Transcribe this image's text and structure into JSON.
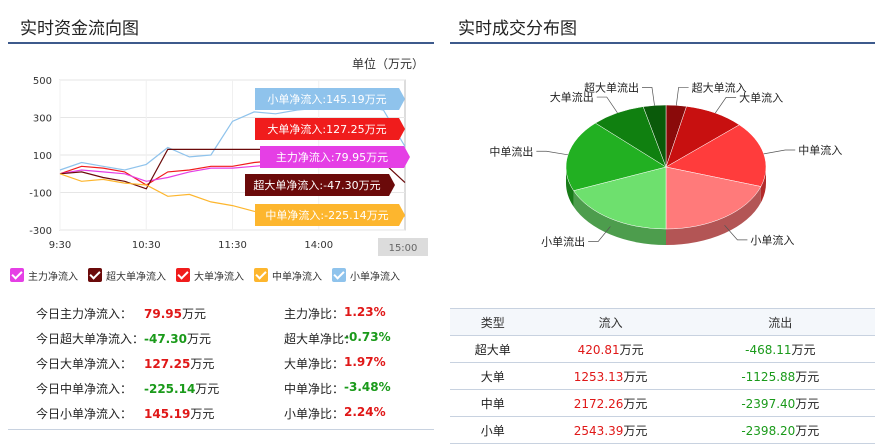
{
  "left_panel": {
    "title": "实时资金流向图",
    "unit": "单位（万元）"
  },
  "right_panel": {
    "title": "实时成交分布图"
  },
  "colors": {
    "accent_rule": "#3d5a8c",
    "main": "#e53fe5",
    "super": "#6b0a0a",
    "large": "#f01c1c",
    "medium": "#fdb62e",
    "small": "#8fc3ec",
    "up": "#e01818",
    "down": "#1a9a1a"
  },
  "chart_data": [
    {
      "type": "line",
      "title": "实时资金流向图",
      "ylabel": "单位（万元）",
      "y_ticks": [
        "500",
        "300",
        "100",
        "-100",
        "-300"
      ],
      "x_ticks": [
        "9:30",
        "10:30",
        "11:30",
        "14:00",
        "15:00"
      ],
      "ylim": [
        -300,
        500
      ],
      "x": [
        "9:30",
        "9:45",
        "10:00",
        "10:15",
        "10:30",
        "10:45",
        "11:00",
        "11:15",
        "11:30",
        "13:15",
        "13:30",
        "13:45",
        "14:00",
        "14:15",
        "14:30",
        "14:45",
        "15:00"
      ],
      "series": [
        {
          "name": "小单净流入",
          "label": "小单净流入:145.19万元",
          "color": "#8fc3ec",
          "values": [
            20,
            60,
            40,
            20,
            50,
            140,
            90,
            100,
            280,
            330,
            320,
            340,
            350,
            360,
            360,
            340,
            145.19
          ]
        },
        {
          "name": "大单净流入",
          "label": "大单净流入:127.25万元",
          "color": "#f01c1c",
          "values": [
            0,
            40,
            30,
            10,
            -60,
            10,
            20,
            40,
            40,
            60,
            70,
            80,
            100,
            110,
            115,
            120,
            127.25
          ]
        },
        {
          "name": "主力净流入",
          "label": "主力净流入:79.95万元",
          "color": "#e53fe5",
          "values": [
            0,
            20,
            10,
            0,
            -40,
            -20,
            10,
            30,
            30,
            40,
            50,
            55,
            60,
            65,
            70,
            75,
            79.95
          ]
        },
        {
          "name": "超大单净流入",
          "label": "超大单净流入:-47.30万元",
          "color": "#6b0a0a",
          "values": [
            0,
            10,
            -20,
            -40,
            -80,
            130,
            130,
            130,
            130,
            130,
            130,
            130,
            130,
            130,
            100,
            60,
            -47.3
          ]
        },
        {
          "name": "中单净流入",
          "label": "中单净流入:-225.14万元",
          "color": "#fdb62e",
          "values": [
            0,
            -40,
            -30,
            -50,
            -60,
            -120,
            -110,
            -150,
            -170,
            -200,
            -210,
            -230,
            -240,
            -245,
            -240,
            -230,
            -225.14
          ]
        }
      ],
      "end_label": "15:00"
    },
    {
      "type": "pie",
      "title": "实时成交分布图",
      "categories": [
        "超大单流入",
        "大单流入",
        "中单流入",
        "小单流入",
        "小单流出",
        "中单流出",
        "大单流出",
        "超大单流出"
      ],
      "values": [
        420.81,
        1253.13,
        2172.26,
        2543.39,
        2398.2,
        2397.4,
        1125.88,
        468.11
      ],
      "colors": [
        "#8a0a0a",
        "#c81010",
        "#ff3c3c",
        "#ff7a7a",
        "#6ee06e",
        "#22b022",
        "#108010",
        "#0a5a0a"
      ]
    }
  ],
  "legend": [
    {
      "label": "主力净流入",
      "color": "#e53fe5"
    },
    {
      "label": "超大单净流入",
      "color": "#6b0a0a"
    },
    {
      "label": "大单净流入",
      "color": "#f01c1c"
    },
    {
      "label": "中单净流入",
      "color": "#fdb62e"
    },
    {
      "label": "小单净流入",
      "color": "#8fc3ec"
    }
  ],
  "stats": [
    {
      "left_label": "今日主力净流入：",
      "left_value": "79.95",
      "left_unit": "万元",
      "left_dir": "up",
      "right_label": "主力净比：",
      "right_value": "1.23%",
      "right_dir": "up"
    },
    {
      "left_label": "今日超大单净流入：",
      "left_value": "-47.30",
      "left_unit": "万元",
      "left_dir": "down",
      "right_label": "超大单净比：",
      "right_value": "-0.73%",
      "right_dir": "down"
    },
    {
      "left_label": "今日大单净流入：",
      "left_value": "127.25",
      "left_unit": "万元",
      "left_dir": "up",
      "right_label": "大单净比：",
      "right_value": "1.97%",
      "right_dir": "up"
    },
    {
      "left_label": "今日中单净流入：",
      "left_value": "-225.14",
      "left_unit": "万元",
      "left_dir": "down",
      "right_label": "中单净比：",
      "right_value": "-3.48%",
      "right_dir": "down"
    },
    {
      "left_label": "今日小单净流入：",
      "left_value": "145.19",
      "left_unit": "万元",
      "left_dir": "up",
      "right_label": "小单净比：",
      "right_value": "2.24%",
      "right_dir": "up"
    }
  ],
  "table": {
    "headers": [
      "类型",
      "流入",
      "流出"
    ],
    "rows": [
      {
        "type": "超大单",
        "inflow": "420.81",
        "outflow": "-468.11",
        "unit": "万元"
      },
      {
        "type": "大单",
        "inflow": "1253.13",
        "outflow": "-1125.88",
        "unit": "万元"
      },
      {
        "type": "中单",
        "inflow": "2172.26",
        "outflow": "-2397.40",
        "unit": "万元"
      },
      {
        "type": "小单",
        "inflow": "2543.39",
        "outflow": "-2398.20",
        "unit": "万元"
      }
    ]
  }
}
